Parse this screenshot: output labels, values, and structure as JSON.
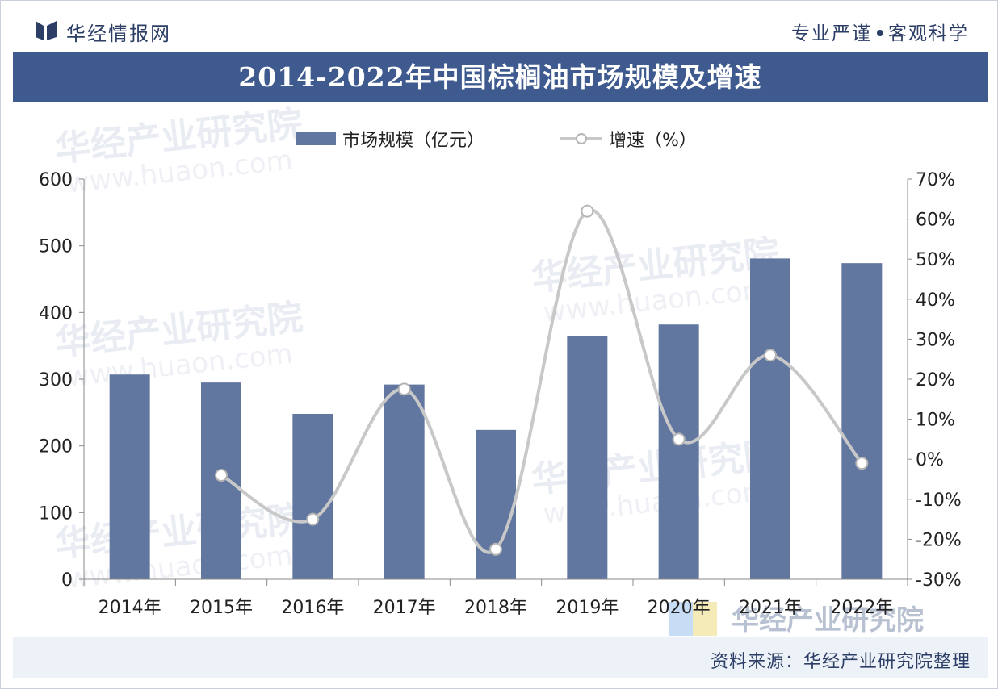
{
  "header": {
    "logo_text": "华经情报网",
    "slogan_left": "专业严谨",
    "slogan_right": "客观科学"
  },
  "title": "2014-2022年中国棕榈油市场规模及增速",
  "chart_data": {
    "type": "bar+line",
    "title": "2014-2022年中国棕榈油市场规模及增速",
    "categories": [
      "2014年",
      "2015年",
      "2016年",
      "2017年",
      "2018年",
      "2019年",
      "2020年",
      "2021年",
      "2022年"
    ],
    "series": [
      {
        "name": "市场规模（亿元）",
        "type": "bar",
        "axis": "left",
        "values": [
          307,
          295,
          248,
          292,
          224,
          365,
          382,
          481,
          474
        ]
      },
      {
        "name": "增速（%）",
        "type": "line",
        "axis": "right",
        "values": [
          null,
          -4,
          -15,
          17.5,
          -22.5,
          62,
          5,
          26,
          -1
        ]
      }
    ],
    "y_left": {
      "ylim": [
        0,
        600
      ],
      "ticks": [
        "0",
        "100",
        "200",
        "300",
        "400",
        "500",
        "600"
      ]
    },
    "y_right": {
      "ylim": [
        -30,
        70
      ],
      "ticks": [
        "-30%",
        "-20%",
        "-10%",
        "0%",
        "10%",
        "20%",
        "30%",
        "40%",
        "50%",
        "60%",
        "70%"
      ]
    },
    "legend_position": "top-center",
    "grid": false,
    "colors": {
      "bar": "#61779f",
      "line": "#c8c8c8",
      "marker_fill": "#ffffff",
      "marker_stroke": "#b5b5b5"
    }
  },
  "watermark": {
    "brand": "华经产业研究院",
    "domain": "www.huaon.com"
  },
  "footer": {
    "source": "资料来源：华经产业研究院整理"
  }
}
